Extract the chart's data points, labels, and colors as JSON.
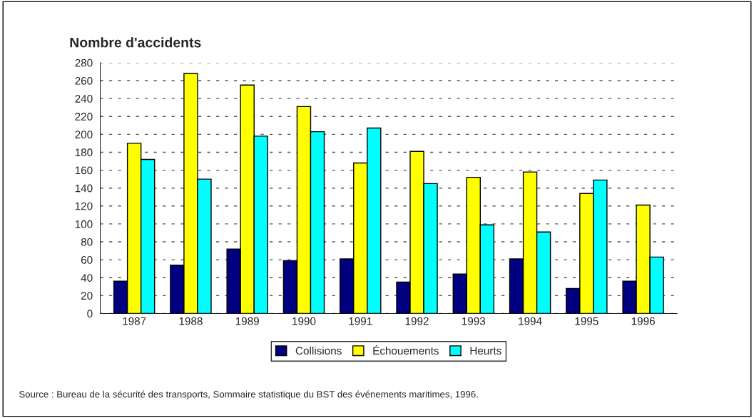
{
  "chart_data": {
    "type": "bar",
    "title": "Nombre d'accidents",
    "categories": [
      "1987",
      "1988",
      "1989",
      "1990",
      "1991",
      "1992",
      "1993",
      "1994",
      "1995",
      "1996"
    ],
    "series": [
      {
        "name": "Collisions",
        "color": "#000080",
        "values": [
          36,
          54,
          72,
          59,
          61,
          35,
          44,
          61,
          28,
          36
        ]
      },
      {
        "name": "Échouements",
        "color": "#ffff00",
        "values": [
          190,
          268,
          255,
          231,
          168,
          181,
          152,
          158,
          134,
          121
        ]
      },
      {
        "name": "Heurts",
        "color": "#00ffff",
        "values": [
          172,
          150,
          198,
          203,
          207,
          145,
          99,
          91,
          149,
          63
        ]
      }
    ],
    "ylim": [
      0,
      280
    ],
    "yticks": [
      0,
      20,
      40,
      60,
      80,
      100,
      120,
      140,
      160,
      180,
      200,
      220,
      240,
      260,
      280
    ],
    "grid": "y",
    "legend": "bottom",
    "annotations": [
      "Source : Bureau de la sécurité des transports, Sommaire statistique du BST des événements maritimes, 1996."
    ]
  }
}
